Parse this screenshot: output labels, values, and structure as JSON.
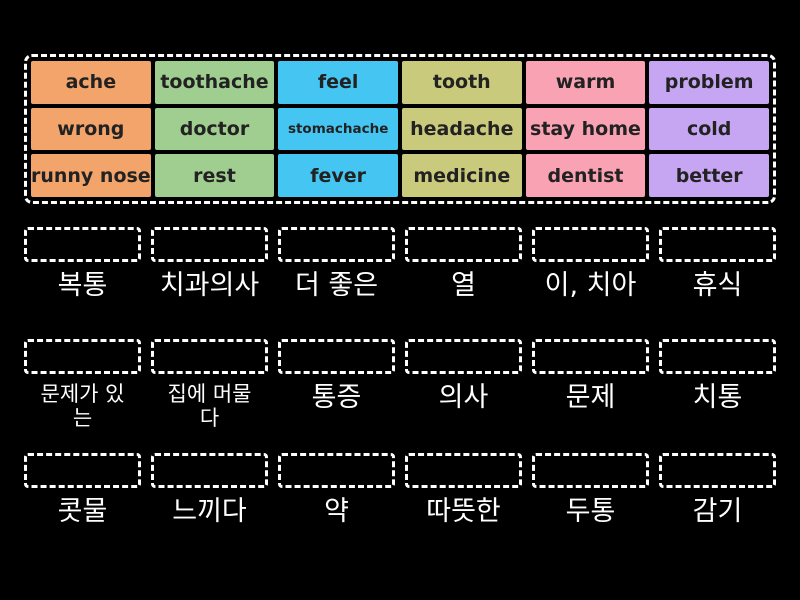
{
  "colors": {
    "background": "#000000",
    "border": "#ffffff",
    "tile_text": "#222222",
    "label_text": "#ffffff",
    "orange": "#F2A46B",
    "green": "#A0CE90",
    "blue": "#45C5F2",
    "olive": "#CACA7C",
    "pink": "#F9A2B4",
    "purple": "#C6A6F2"
  },
  "tiles": [
    {
      "label": "ache",
      "color": "#F2A46B"
    },
    {
      "label": "toothache",
      "color": "#A0CE90"
    },
    {
      "label": "feel",
      "color": "#45C5F2"
    },
    {
      "label": "tooth",
      "color": "#CACA7C"
    },
    {
      "label": "warm",
      "color": "#F9A2B4"
    },
    {
      "label": "problem",
      "color": "#C6A6F2"
    },
    {
      "label": "wrong",
      "color": "#F2A46B"
    },
    {
      "label": "doctor",
      "color": "#A0CE90"
    },
    {
      "label": "stomachache",
      "color": "#45C5F2"
    },
    {
      "label": "headache",
      "color": "#CACA7C"
    },
    {
      "label": "stay home",
      "color": "#F9A2B4"
    },
    {
      "label": "cold",
      "color": "#C6A6F2"
    },
    {
      "label": "runny nose",
      "color": "#F2A46B"
    },
    {
      "label": "rest",
      "color": "#A0CE90"
    },
    {
      "label": "fever",
      "color": "#45C5F2"
    },
    {
      "label": "medicine",
      "color": "#CACA7C"
    },
    {
      "label": "dentist",
      "color": "#F9A2B4"
    },
    {
      "label": "better",
      "color": "#C6A6F2"
    }
  ],
  "labels": [
    "복통",
    "치과의사",
    "더 좋은",
    "열",
    "이, 치아",
    "휴식",
    "문제가 있는",
    "집에 머물다",
    "통증",
    "의사",
    "문제",
    "치통",
    "콧물",
    "느끼다",
    "약",
    "따뜻한",
    "두통",
    "감기"
  ]
}
